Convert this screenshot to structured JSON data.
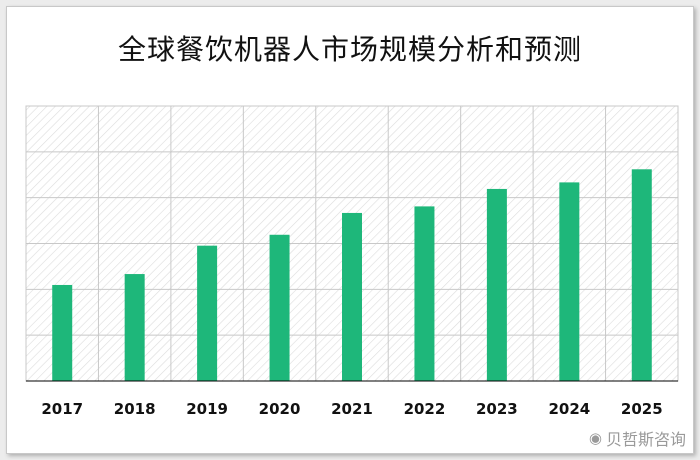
{
  "title": "全球餐饮机器人市场规模分析和预测",
  "watermark": {
    "icon": "weibo-icon",
    "text": "贝哲斯咨询"
  },
  "colors": {
    "bar": "#1eb77a",
    "grid": "#c8c8c8",
    "hatch": "#dcdcdc",
    "axis": "#000000"
  },
  "chart_data": {
    "type": "bar",
    "title": "全球餐饮机器人市场规模分析和预测",
    "categories": [
      "2017",
      "2018",
      "2019",
      "2020",
      "2021",
      "2022",
      "2023",
      "2024",
      "2025"
    ],
    "values": [
      22,
      24.5,
      31,
      33.5,
      38.5,
      40,
      44,
      45.5,
      48.5
    ],
    "xlabel": "",
    "ylabel": "",
    "ylim": [
      0,
      63
    ],
    "y_tick_labels_shown": false,
    "grid": true,
    "legend": "none"
  }
}
